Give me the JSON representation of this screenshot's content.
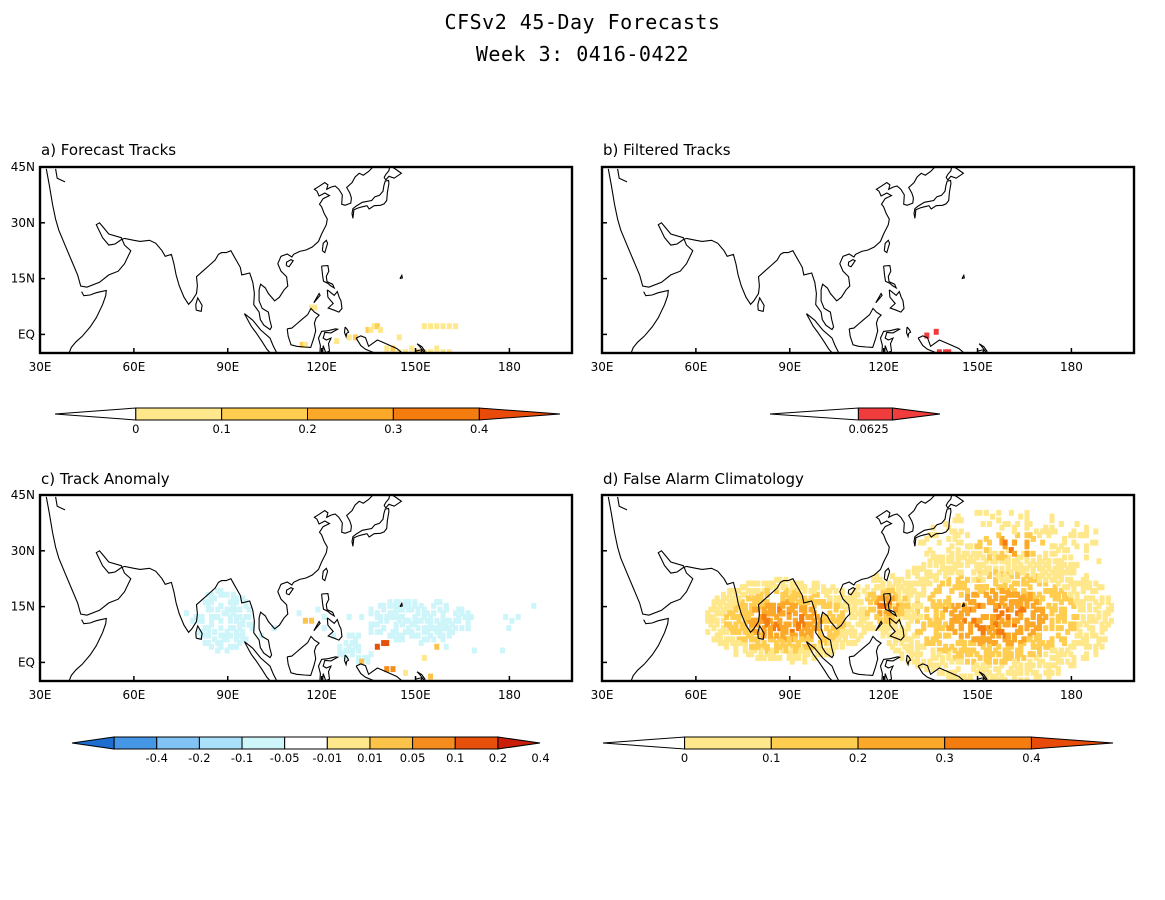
{
  "title_line1": "CFSv2 45-Day Forecasts",
  "title_line2": "Week 3: 0416-0422",
  "lon_labels": [
    "30E",
    "60E",
    "90E",
    "120E",
    "150E",
    "180"
  ],
  "lat_labels": [
    "45N",
    "30N",
    "15N",
    "EQ"
  ],
  "panels": [
    {
      "id": "a",
      "title": "a) Forecast Tracks",
      "show_lat_labels": true
    },
    {
      "id": "b",
      "title": "b) Filtered Tracks",
      "show_lat_labels": false
    },
    {
      "id": "c",
      "title": "c) Track Anomaly",
      "show_lat_labels": true
    },
    {
      "id": "d",
      "title": "d) False Alarm Climatology",
      "show_lat_labels": false
    }
  ],
  "colorbars": {
    "a": {
      "labels": [
        "0",
        "0.1",
        "0.2",
        "0.3",
        "0.4"
      ],
      "colors": [
        "#ffe88c",
        "#ffcd50",
        "#fca828",
        "#f57d10",
        "#e84a0a"
      ]
    },
    "b": {
      "labels": [
        "0.0625"
      ],
      "colors": [
        "#f03c3c"
      ]
    },
    "c": {
      "labels": [
        "-0.4",
        "-0.2",
        "-0.1",
        "-0.05",
        "-0.01",
        "0.01",
        "0.05",
        "0.1",
        "0.2",
        "0.4"
      ],
      "colors": [
        "#1e6ed2",
        "#4696e6",
        "#82c3f5",
        "#aae1fa",
        "#cdf5fa",
        "#ffffff",
        "#ffe88c",
        "#fcc34b",
        "#f58c1e",
        "#e6500a",
        "#c81e0a"
      ]
    },
    "d": {
      "labels": [
        "0",
        "0.1",
        "0.2",
        "0.3",
        "0.4"
      ],
      "colors": [
        "#ffe88c",
        "#ffcd50",
        "#fca828",
        "#f57d10",
        "#e84a0a"
      ]
    }
  }
}
